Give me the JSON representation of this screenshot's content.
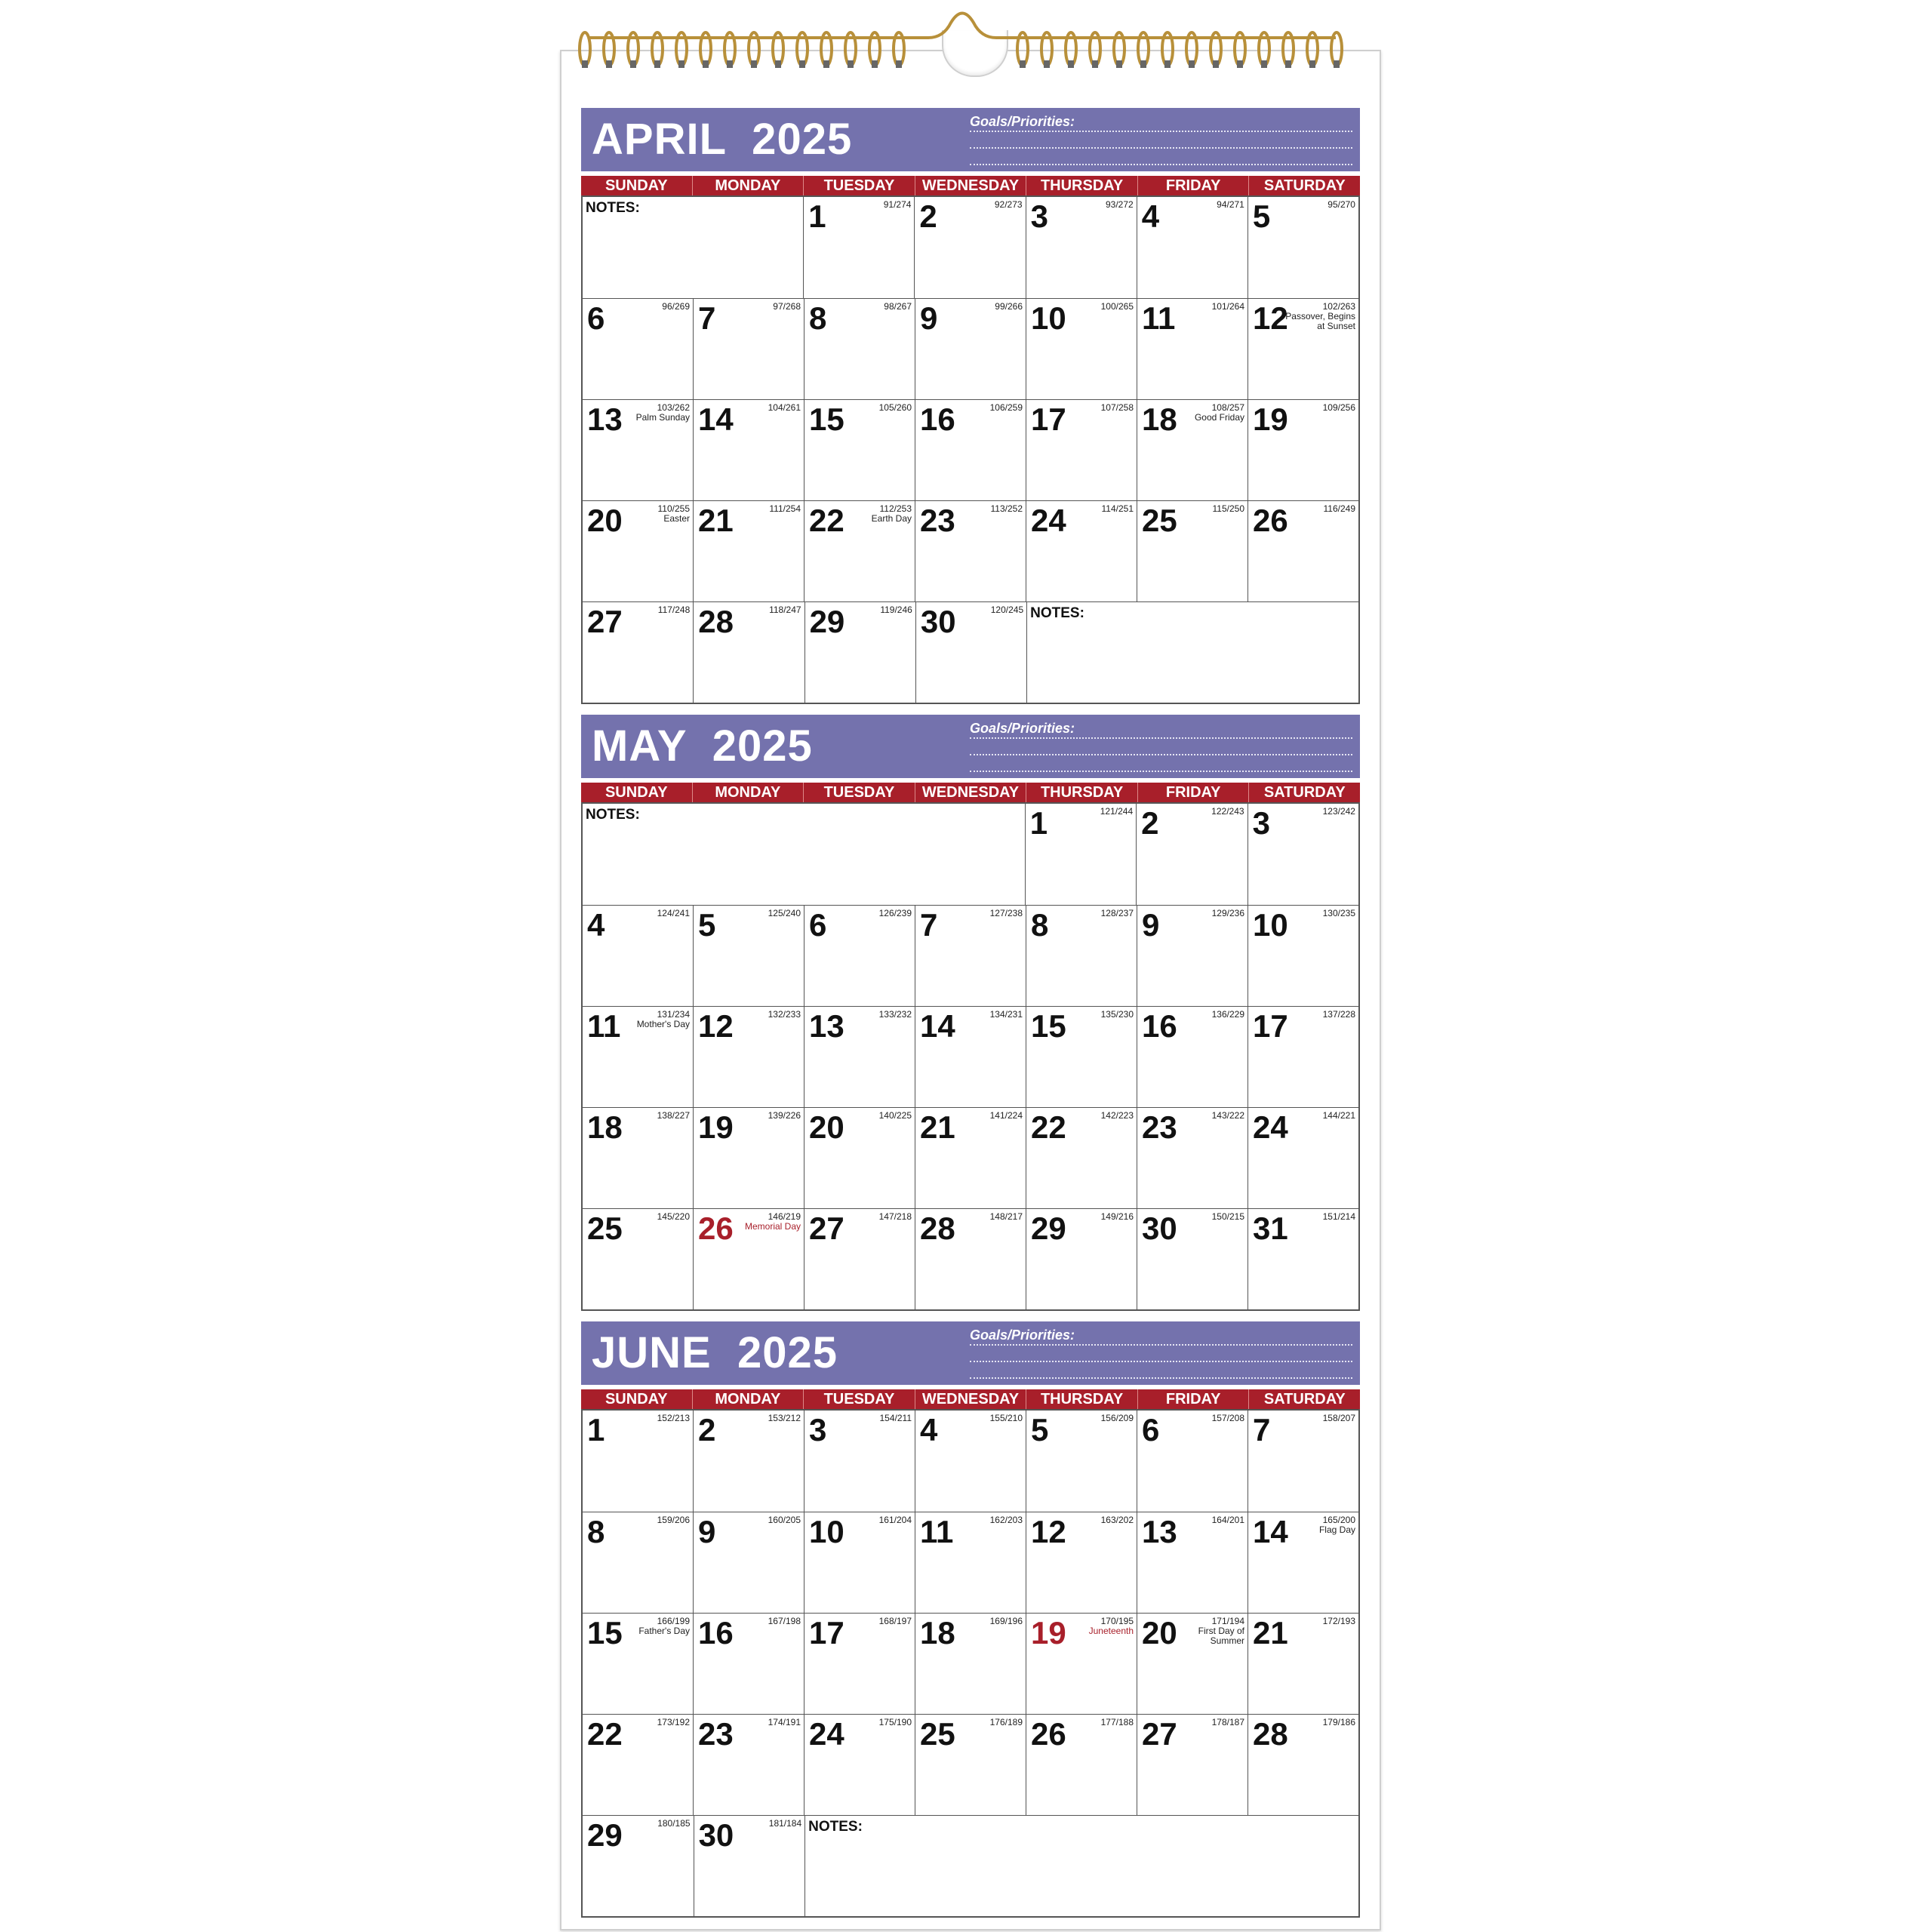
{
  "weekdays": [
    "SUNDAY",
    "MONDAY",
    "TUESDAY",
    "WEDNESDAY",
    "THURSDAY",
    "FRIDAY",
    "SATURDAY"
  ],
  "goals_label": "Goals/Priorities:",
  "colors": {
    "header": "#7472ad",
    "dayrow": "#a81f2a",
    "holiday_red": "#a81f2a",
    "spiral": "#b8903a"
  },
  "months": [
    {
      "title": "APRIL  2025",
      "weeks": [
        [
          {
            "notes": "NOTES:",
            "span": 2
          },
          [
            "1",
            "91/274"
          ],
          [
            "2",
            "92/273"
          ],
          [
            "3",
            "93/272"
          ],
          [
            "4",
            "94/271"
          ],
          [
            "5",
            "95/270"
          ]
        ],
        [
          [
            "6",
            "96/269"
          ],
          [
            "7",
            "97/268"
          ],
          [
            "8",
            "98/267"
          ],
          [
            "9",
            "99/266"
          ],
          [
            "10",
            "100/265"
          ],
          [
            "11",
            "101/264"
          ],
          [
            "12",
            "102/263",
            "Passover, Begins at Sunset"
          ]
        ],
        [
          [
            "13",
            "103/262",
            "Palm Sunday"
          ],
          [
            "14",
            "104/261"
          ],
          [
            "15",
            "105/260"
          ],
          [
            "16",
            "106/259"
          ],
          [
            "17",
            "107/258"
          ],
          [
            "18",
            "108/257",
            "Good Friday"
          ],
          [
            "19",
            "109/256"
          ]
        ],
        [
          [
            "20",
            "110/255",
            "Easter"
          ],
          [
            "21",
            "111/254"
          ],
          [
            "22",
            "112/253",
            "Earth Day"
          ],
          [
            "23",
            "113/252"
          ],
          [
            "24",
            "114/251"
          ],
          [
            "25",
            "115/250"
          ],
          [
            "26",
            "116/249"
          ]
        ],
        [
          [
            "27",
            "117/248"
          ],
          [
            "28",
            "118/247"
          ],
          [
            "29",
            "119/246"
          ],
          [
            "30",
            "120/245"
          ],
          {
            "notes": "NOTES:",
            "span": 3
          }
        ]
      ]
    },
    {
      "title": "MAY  2025",
      "weeks": [
        [
          {
            "notes": "NOTES:",
            "span": 4
          },
          [
            "1",
            "121/244"
          ],
          [
            "2",
            "122/243"
          ],
          [
            "3",
            "123/242"
          ]
        ],
        [
          [
            "4",
            "124/241"
          ],
          [
            "5",
            "125/240"
          ],
          [
            "6",
            "126/239"
          ],
          [
            "7",
            "127/238"
          ],
          [
            "8",
            "128/237"
          ],
          [
            "9",
            "129/236"
          ],
          [
            "10",
            "130/235"
          ]
        ],
        [
          [
            "11",
            "131/234",
            "Mother's Day"
          ],
          [
            "12",
            "132/233"
          ],
          [
            "13",
            "133/232"
          ],
          [
            "14",
            "134/231"
          ],
          [
            "15",
            "135/230"
          ],
          [
            "16",
            "136/229"
          ],
          [
            "17",
            "137/228"
          ]
        ],
        [
          [
            "18",
            "138/227"
          ],
          [
            "19",
            "139/226"
          ],
          [
            "20",
            "140/225"
          ],
          [
            "21",
            "141/224"
          ],
          [
            "22",
            "142/223"
          ],
          [
            "23",
            "143/222"
          ],
          [
            "24",
            "144/221"
          ]
        ],
        [
          [
            "25",
            "145/220"
          ],
          [
            "26",
            "146/219",
            "Memorial Day",
            "red"
          ],
          [
            "27",
            "147/218"
          ],
          [
            "28",
            "148/217"
          ],
          [
            "29",
            "149/216"
          ],
          [
            "30",
            "150/215"
          ],
          [
            "31",
            "151/214"
          ]
        ]
      ]
    },
    {
      "title": "JUNE  2025",
      "weeks": [
        [
          [
            "1",
            "152/213"
          ],
          [
            "2",
            "153/212"
          ],
          [
            "3",
            "154/211"
          ],
          [
            "4",
            "155/210"
          ],
          [
            "5",
            "156/209"
          ],
          [
            "6",
            "157/208"
          ],
          [
            "7",
            "158/207"
          ]
        ],
        [
          [
            "8",
            "159/206"
          ],
          [
            "9",
            "160/205"
          ],
          [
            "10",
            "161/204"
          ],
          [
            "11",
            "162/203"
          ],
          [
            "12",
            "163/202"
          ],
          [
            "13",
            "164/201"
          ],
          [
            "14",
            "165/200",
            "Flag Day"
          ]
        ],
        [
          [
            "15",
            "166/199",
            "Father's Day"
          ],
          [
            "16",
            "167/198"
          ],
          [
            "17",
            "168/197"
          ],
          [
            "18",
            "169/196"
          ],
          [
            "19",
            "170/195",
            "Juneteenth",
            "red"
          ],
          [
            "20",
            "171/194",
            "First Day of Summer"
          ],
          [
            "21",
            "172/193"
          ]
        ],
        [
          [
            "22",
            "173/192"
          ],
          [
            "23",
            "174/191"
          ],
          [
            "24",
            "175/190"
          ],
          [
            "25",
            "176/189"
          ],
          [
            "26",
            "177/188"
          ],
          [
            "27",
            "178/187"
          ],
          [
            "28",
            "179/186"
          ]
        ],
        [
          [
            "29",
            "180/185"
          ],
          [
            "30",
            "181/184"
          ],
          {
            "notes": "NOTES:",
            "span": 5
          }
        ]
      ]
    }
  ]
}
